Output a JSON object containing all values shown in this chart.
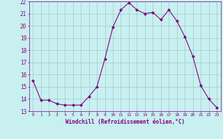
{
  "x": [
    0,
    1,
    2,
    3,
    4,
    5,
    6,
    7,
    8,
    9,
    10,
    11,
    12,
    13,
    14,
    15,
    16,
    17,
    18,
    19,
    20,
    21,
    22,
    23
  ],
  "y": [
    15.5,
    13.9,
    13.9,
    13.6,
    13.5,
    13.5,
    13.5,
    14.2,
    15.0,
    17.3,
    19.9,
    21.3,
    21.9,
    21.3,
    21.0,
    21.1,
    20.5,
    21.3,
    20.4,
    19.1,
    17.5,
    15.1,
    14.0,
    13.3
  ],
  "line_color": "#800080",
  "marker": "D",
  "markersize": 2.0,
  "linewidth": 0.8,
  "background_color": "#c8f0f0",
  "grid_color": "#a0c8c8",
  "xlabel": "Windchill (Refroidissement éolien,°C)",
  "xlabel_color": "#800080",
  "tick_color": "#800080",
  "ylim": [
    13,
    22
  ],
  "xlim": [
    -0.5,
    23.5
  ],
  "yticks": [
    13,
    14,
    15,
    16,
    17,
    18,
    19,
    20,
    21,
    22
  ],
  "xticks": [
    0,
    1,
    2,
    3,
    4,
    5,
    6,
    7,
    8,
    9,
    10,
    11,
    12,
    13,
    14,
    15,
    16,
    17,
    18,
    19,
    20,
    21,
    22,
    23
  ]
}
